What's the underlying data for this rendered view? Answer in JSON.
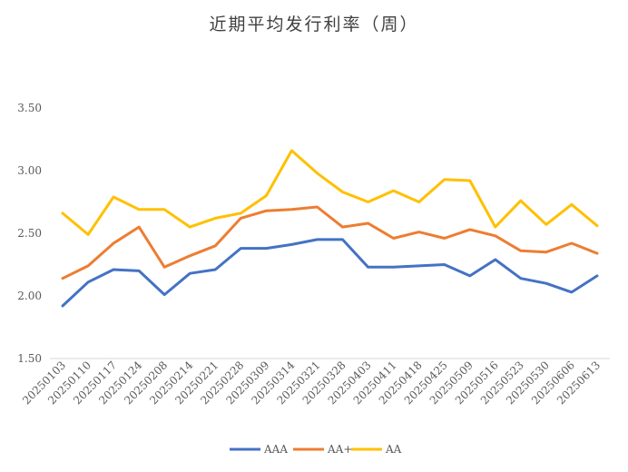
{
  "chart_data": {
    "type": "line",
    "title": "近期平均发行利率（周）",
    "xlabel": "",
    "ylabel": "",
    "ylim": [
      1.5,
      3.5
    ],
    "yticks": [
      "1.50",
      "2.00",
      "2.50",
      "3.00",
      "3.50"
    ],
    "grid": false,
    "legend_position": "bottom",
    "categories": [
      "20250103",
      "20250110",
      "20250117",
      "20250124",
      "20250208",
      "20250214",
      "20250221",
      "20250228",
      "20250309",
      "20250314",
      "20250321",
      "20250328",
      "20250403",
      "20250411",
      "20250418",
      "20250425",
      "20250509",
      "20250516",
      "20250523",
      "20250530",
      "20250606",
      "20250613"
    ],
    "series": [
      {
        "name": "AAA",
        "color": "#4472C4",
        "values": [
          1.92,
          2.11,
          2.21,
          2.2,
          2.01,
          2.18,
          2.21,
          2.38,
          2.38,
          2.41,
          2.45,
          2.45,
          2.23,
          2.23,
          2.24,
          2.25,
          2.16,
          2.29,
          2.14,
          2.1,
          2.03,
          2.16
        ]
      },
      {
        "name": "AA+",
        "color": "#ED7D31",
        "values": [
          2.14,
          2.24,
          2.42,
          2.55,
          2.23,
          2.32,
          2.4,
          2.62,
          2.68,
          2.69,
          2.71,
          2.55,
          2.58,
          2.46,
          2.51,
          2.46,
          2.53,
          2.48,
          2.36,
          2.35,
          2.42,
          2.34
        ]
      },
      {
        "name": "AA",
        "color": "#FFC000",
        "values": [
          2.66,
          2.49,
          2.79,
          2.69,
          2.69,
          2.55,
          2.62,
          2.66,
          2.8,
          3.16,
          2.98,
          2.83,
          2.75,
          2.84,
          2.75,
          2.93,
          2.92,
          2.55,
          2.76,
          2.57,
          2.73,
          2.56
        ]
      }
    ]
  }
}
